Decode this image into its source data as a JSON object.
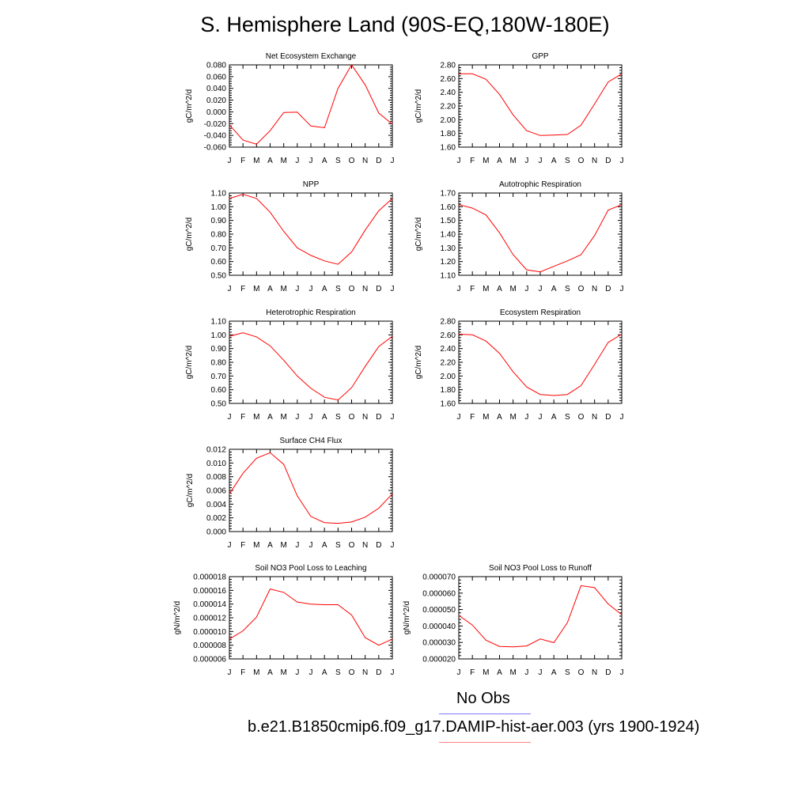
{
  "title": "S. Hemisphere Land (90S-EQ,180W-180E)",
  "colors": {
    "model_line": "#ff0000",
    "obs_legend": "#7b7bff",
    "model_legend": "#ff8080",
    "axis": "#000000"
  },
  "legend": {
    "obs_label": "No Obs",
    "model_label": "b.e21.B1850cmip6.f09_g17.DAMIP-hist-aer.003 (yrs 1900-1924)"
  },
  "chart_data": [
    {
      "type": "line",
      "title": "Net Ecosystem Exchange",
      "ylabel": "gC/m^2/d",
      "x": [
        "J",
        "F",
        "M",
        "A",
        "M",
        "J",
        "J",
        "A",
        "S",
        "O",
        "N",
        "D",
        "J"
      ],
      "ylim": [
        -0.06,
        0.08
      ],
      "yticks": [
        "-0.060",
        "-0.040",
        "-0.020",
        "0.000",
        "0.020",
        "0.040",
        "0.060",
        "0.080"
      ],
      "series": [
        {
          "values": [
            -0.022,
            -0.048,
            -0.055,
            -0.032,
            -0.001,
            -0.0005,
            -0.024,
            -0.027,
            0.04,
            0.08,
            0.046,
            -0.002,
            -0.021
          ]
        }
      ]
    },
    {
      "type": "line",
      "title": "GPP",
      "ylabel": "gC/m^2/d",
      "x": [
        "J",
        "F",
        "M",
        "A",
        "M",
        "J",
        "J",
        "A",
        "S",
        "O",
        "N",
        "D",
        "J"
      ],
      "ylim": [
        1.6,
        2.8
      ],
      "yticks": [
        "1.60",
        "1.80",
        "2.00",
        "2.20",
        "2.40",
        "2.60",
        "2.80"
      ],
      "series": [
        {
          "values": [
            2.67,
            2.67,
            2.59,
            2.37,
            2.07,
            1.84,
            1.77,
            1.775,
            1.785,
            1.92,
            2.23,
            2.55,
            2.67
          ]
        }
      ]
    },
    {
      "type": "line",
      "title": "NPP",
      "ylabel": "gC/m^2/d",
      "x": [
        "J",
        "F",
        "M",
        "A",
        "M",
        "J",
        "J",
        "A",
        "S",
        "O",
        "N",
        "D",
        "J"
      ],
      "ylim": [
        0.5,
        1.1
      ],
      "yticks": [
        "0.50",
        "0.60",
        "0.70",
        "0.80",
        "0.90",
        "1.00",
        "1.10"
      ],
      "series": [
        {
          "values": [
            1.06,
            1.09,
            1.06,
            0.96,
            0.82,
            0.7,
            0.645,
            0.605,
            0.58,
            0.67,
            0.83,
            0.97,
            1.06
          ]
        }
      ]
    },
    {
      "type": "line",
      "title": "Autotrophic Respiration",
      "ylabel": "gC/m^2/d",
      "x": [
        "J",
        "F",
        "M",
        "A",
        "M",
        "J",
        "J",
        "A",
        "S",
        "O",
        "N",
        "D",
        "J"
      ],
      "ylim": [
        1.1,
        1.7
      ],
      "yticks": [
        "1.10",
        "1.20",
        "1.30",
        "1.40",
        "1.50",
        "1.60",
        "1.70"
      ],
      "series": [
        {
          "values": [
            1.615,
            1.59,
            1.54,
            1.41,
            1.25,
            1.14,
            1.125,
            1.165,
            1.205,
            1.25,
            1.39,
            1.575,
            1.615
          ]
        }
      ]
    },
    {
      "type": "line",
      "title": "Heterotrophic Respiration",
      "ylabel": "gC/m^2/d",
      "x": [
        "J",
        "F",
        "M",
        "A",
        "M",
        "J",
        "J",
        "A",
        "S",
        "O",
        "N",
        "D",
        "J"
      ],
      "ylim": [
        0.5,
        1.1
      ],
      "yticks": [
        "0.50",
        "0.60",
        "0.70",
        "0.80",
        "0.90",
        "1.00",
        "1.10"
      ],
      "series": [
        {
          "values": [
            0.99,
            1.015,
            0.985,
            0.92,
            0.815,
            0.7,
            0.61,
            0.545,
            0.525,
            0.615,
            0.77,
            0.915,
            0.99
          ]
        }
      ]
    },
    {
      "type": "line",
      "title": "Ecosystem Respiration",
      "ylabel": "gC/m^2/d",
      "x": [
        "J",
        "F",
        "M",
        "A",
        "M",
        "J",
        "J",
        "A",
        "S",
        "O",
        "N",
        "D",
        "J"
      ],
      "ylim": [
        1.6,
        2.8
      ],
      "yticks": [
        "1.60",
        "1.80",
        "2.00",
        "2.20",
        "2.40",
        "2.60",
        "2.80"
      ],
      "series": [
        {
          "values": [
            2.61,
            2.6,
            2.51,
            2.33,
            2.06,
            1.84,
            1.73,
            1.715,
            1.73,
            1.86,
            2.17,
            2.49,
            2.61
          ]
        }
      ]
    },
    {
      "type": "line",
      "title": "Surface CH4 Flux",
      "ylabel": "gC/m^2/d",
      "x": [
        "J",
        "F",
        "M",
        "A",
        "M",
        "J",
        "J",
        "A",
        "S",
        "O",
        "N",
        "D",
        "J"
      ],
      "ylim": [
        0.0,
        0.012
      ],
      "yticks": [
        "0.000",
        "0.002",
        "0.004",
        "0.006",
        "0.008",
        "0.010",
        "0.012"
      ],
      "series": [
        {
          "values": [
            0.0055,
            0.0085,
            0.0107,
            0.0115,
            0.0098,
            0.0052,
            0.0022,
            0.0013,
            0.0012,
            0.0014,
            0.0021,
            0.0034,
            0.0055
          ]
        }
      ]
    },
    {
      "type": "line",
      "title": "Soil NO3 Pool Loss to Leaching",
      "ylabel": "gN/m^2/d",
      "x": [
        "J",
        "F",
        "M",
        "A",
        "M",
        "J",
        "J",
        "A",
        "S",
        "O",
        "N",
        "D",
        "J"
      ],
      "ylim": [
        6e-06,
        1.8e-05
      ],
      "yticks": [
        "0.000006",
        "0.000008",
        "0.000010",
        "0.000012",
        "0.000014",
        "0.000016",
        "0.000018"
      ],
      "series": [
        {
          "values": [
            8.9e-06,
            1.01e-05,
            1.21e-05,
            1.62e-05,
            1.57e-05,
            1.43e-05,
            1.4e-05,
            1.39e-05,
            1.39e-05,
            1.24e-05,
            9.1e-06,
            8e-06,
            8.9e-06
          ]
        }
      ]
    },
    {
      "type": "line",
      "title": "Soil NO3 Pool Loss to Runoff",
      "ylabel": "gN/m^2/d",
      "x": [
        "J",
        "F",
        "M",
        "A",
        "M",
        "J",
        "J",
        "A",
        "S",
        "O",
        "N",
        "D",
        "J"
      ],
      "ylim": [
        2e-05,
        7e-05
      ],
      "yticks": [
        "0.000020",
        "0.000030",
        "0.000040",
        "0.000050",
        "0.000060",
        "0.000070"
      ],
      "series": [
        {
          "values": [
            4.65e-05,
            4.06e-05,
            3.14e-05,
            2.76e-05,
            2.73e-05,
            2.79e-05,
            3.21e-05,
            2.99e-05,
            4.2e-05,
            6.45e-05,
            6.33e-05,
            5.34e-05,
            4.69e-05
          ]
        }
      ]
    }
  ]
}
